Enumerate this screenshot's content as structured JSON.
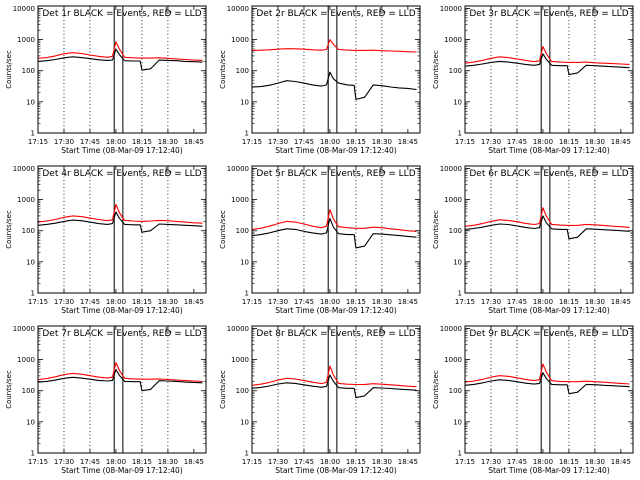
{
  "chart_data": {
    "type": "line",
    "x_tick_labels": [
      "17:15",
      "17:30",
      "17:45",
      "18:00",
      "18:15",
      "18:30",
      "18:45"
    ],
    "x_tick_minutes": [
      15,
      30,
      45,
      60,
      75,
      90,
      105
    ],
    "x_range_minutes": [
      15,
      112
    ],
    "y_ticks": [
      1,
      10,
      100,
      1000,
      10000
    ],
    "y_tick_labels": [
      "1",
      "10",
      "100",
      "1000",
      "10000"
    ],
    "y_range": [
      1,
      12000
    ],
    "y_scale": "log",
    "dotted_gridline_minutes": [
      30,
      45,
      75,
      90
    ],
    "solid_marker_minutes": [
      59,
      64
    ],
    "colors": {
      "events": "#000000",
      "lld": "#ff0000"
    },
    "panels": [
      {
        "title": "Det 1r BLACK = Events, RED = LLD",
        "xlabel": "Start Time (08-Mar-09 17:12:40)",
        "ylabel": "Counts/sec",
        "series": [
          {
            "color": "#000000",
            "x": [
              15,
              20,
              25,
              30,
              35,
              40,
              45,
              50,
              55,
              58,
              60,
              62,
              65,
              70,
              74,
              75,
              80,
              85,
              90,
              95,
              100,
              105,
              110
            ],
            "y": [
              200,
              210,
              230,
              260,
              280,
              265,
              245,
              225,
              215,
              220,
              500,
              330,
              210,
              205,
              205,
              105,
              115,
              220,
              215,
              210,
              200,
              195,
              190
            ]
          },
          {
            "color": "#ff0000",
            "x": [
              15,
              20,
              25,
              30,
              35,
              40,
              45,
              50,
              55,
              58,
              60,
              62,
              65,
              70,
              75,
              80,
              85,
              90,
              95,
              100,
              105,
              110
            ],
            "y": [
              250,
              265,
              300,
              350,
              380,
              360,
              320,
              290,
              270,
              290,
              850,
              500,
              270,
              260,
              255,
              255,
              260,
              250,
              240,
              230,
              220,
              215
            ]
          }
        ]
      },
      {
        "title": "Det 2r BLACK = Events, RED = LLD",
        "xlabel": "Start Time (08-Mar-09 17:12:40)",
        "ylabel": "Counts/sec",
        "series": [
          {
            "color": "#000000",
            "x": [
              15,
              20,
              25,
              30,
              35,
              40,
              45,
              50,
              55,
              58,
              60,
              62,
              65,
              70,
              74,
              75,
              80,
              85,
              90,
              95,
              100,
              105,
              110
            ],
            "y": [
              30,
              31,
              34,
              40,
              48,
              45,
              40,
              35,
              32,
              35,
              90,
              55,
              40,
              35,
              34,
              12,
              14,
              35,
              33,
              30,
              28,
              27,
              25
            ]
          },
          {
            "color": "#ff0000",
            "x": [
              15,
              20,
              25,
              30,
              35,
              40,
              45,
              50,
              55,
              58,
              60,
              62,
              65,
              70,
              75,
              80,
              85,
              90,
              95,
              100,
              105,
              110
            ],
            "y": [
              450,
              455,
              470,
              490,
              510,
              505,
              490,
              470,
              455,
              480,
              1000,
              700,
              480,
              460,
              450,
              450,
              455,
              440,
              430,
              420,
              410,
              400
            ]
          }
        ]
      },
      {
        "title": "Det 3r BLACK = Events, RED = LLD",
        "xlabel": "Start Time (08-Mar-09 17:12:40)",
        "ylabel": "Counts/sec",
        "series": [
          {
            "color": "#000000",
            "x": [
              15,
              20,
              25,
              30,
              35,
              40,
              45,
              50,
              55,
              58,
              60,
              62,
              65,
              70,
              74,
              75,
              80,
              85,
              90,
              95,
              100,
              105,
              110
            ],
            "y": [
              140,
              150,
              165,
              185,
              200,
              190,
              175,
              160,
              150,
              160,
              350,
              230,
              150,
              145,
              145,
              75,
              85,
              150,
              145,
              140,
              135,
              130,
              125
            ]
          },
          {
            "color": "#ff0000",
            "x": [
              15,
              20,
              25,
              30,
              35,
              40,
              45,
              50,
              55,
              58,
              60,
              62,
              65,
              70,
              75,
              80,
              85,
              90,
              95,
              100,
              105,
              110
            ],
            "y": [
              175,
              190,
              215,
              250,
              280,
              265,
              240,
              215,
              195,
              210,
              600,
              350,
              200,
              190,
              185,
              185,
              190,
              180,
              175,
              170,
              165,
              160
            ]
          }
        ]
      },
      {
        "title": "Det 4r BLACK = Events, RED = LLD",
        "xlabel": "Start Time (08-Mar-09 17:12:40)",
        "ylabel": "Counts/sec",
        "series": [
          {
            "color": "#000000",
            "x": [
              15,
              20,
              25,
              30,
              35,
              40,
              45,
              50,
              55,
              58,
              60,
              62,
              65,
              70,
              74,
              75,
              80,
              85,
              90,
              95,
              100,
              105,
              110
            ],
            "y": [
              150,
              160,
              175,
              200,
              220,
              210,
              190,
              170,
              160,
              170,
              400,
              250,
              160,
              155,
              155,
              90,
              100,
              165,
              160,
              155,
              150,
              145,
              140
            ]
          },
          {
            "color": "#ff0000",
            "x": [
              15,
              20,
              25,
              30,
              35,
              40,
              45,
              50,
              55,
              58,
              60,
              62,
              65,
              70,
              75,
              80,
              85,
              90,
              95,
              100,
              105,
              110
            ],
            "y": [
              190,
              205,
              230,
              270,
              300,
              285,
              255,
              230,
              210,
              225,
              700,
              380,
              215,
              205,
              200,
              205,
              215,
              210,
              200,
              190,
              180,
              175
            ]
          }
        ]
      },
      {
        "title": "Det 5r BLACK = Events, RED = LLD",
        "xlabel": "Start Time (08-Mar-09 17:12:40)",
        "ylabel": "Counts/sec",
        "series": [
          {
            "color": "#000000",
            "x": [
              15,
              20,
              25,
              30,
              35,
              40,
              45,
              50,
              55,
              58,
              60,
              62,
              65,
              70,
              74,
              75,
              80,
              85,
              90,
              95,
              100,
              105,
              110
            ],
            "y": [
              70,
              75,
              85,
              100,
              115,
              110,
              95,
              85,
              78,
              85,
              250,
              130,
              80,
              75,
              75,
              28,
              32,
              80,
              78,
              74,
              70,
              66,
              62
            ]
          },
          {
            "color": "#ff0000",
            "x": [
              15,
              20,
              25,
              30,
              35,
              40,
              45,
              50,
              55,
              58,
              60,
              62,
              65,
              70,
              75,
              80,
              85,
              90,
              95,
              100,
              105,
              110
            ],
            "y": [
              110,
              120,
              140,
              170,
              200,
              190,
              165,
              140,
              125,
              140,
              480,
              240,
              135,
              125,
              120,
              120,
              130,
              125,
              115,
              108,
              100,
              95
            ]
          }
        ]
      },
      {
        "title": "Det 6r BLACK = Events, RED = LLD",
        "xlabel": "Start Time (08-Mar-09 17:12:40)",
        "ylabel": "Counts/sec",
        "series": [
          {
            "color": "#000000",
            "x": [
              15,
              20,
              25,
              30,
              35,
              40,
              45,
              50,
              55,
              58,
              60,
              62,
              65,
              70,
              74,
              75,
              80,
              85,
              90,
              95,
              100,
              105,
              110
            ],
            "y": [
              110,
              118,
              130,
              150,
              165,
              158,
              143,
              128,
              118,
              125,
              300,
              180,
              115,
              110,
              110,
              55,
              62,
              115,
              112,
              108,
              104,
              100,
              96
            ]
          },
          {
            "color": "#ff0000",
            "x": [
              15,
              20,
              25,
              30,
              35,
              40,
              45,
              50,
              55,
              58,
              60,
              62,
              65,
              70,
              75,
              80,
              85,
              90,
              95,
              100,
              105,
              110
            ],
            "y": [
              140,
              150,
              170,
              200,
              225,
              215,
              195,
              172,
              158,
              170,
              550,
              290,
              160,
              152,
              148,
              150,
              160,
              155,
              148,
              140,
              135,
              128
            ]
          }
        ]
      },
      {
        "title": "Det 7r BLACK = Events, RED = LLD",
        "xlabel": "Start Time (08-Mar-09 17:12:40)",
        "ylabel": "Counts/sec",
        "series": [
          {
            "color": "#000000",
            "x": [
              15,
              20,
              25,
              30,
              35,
              40,
              45,
              50,
              55,
              58,
              60,
              62,
              65,
              70,
              74,
              75,
              80,
              85,
              90,
              95,
              100,
              105,
              110
            ],
            "y": [
              190,
              200,
              220,
              250,
              270,
              255,
              235,
              215,
              205,
              215,
              480,
              310,
              200,
              195,
              195,
              100,
              110,
              210,
              205,
              200,
              190,
              185,
              180
            ]
          },
          {
            "color": "#ff0000",
            "x": [
              15,
              20,
              25,
              30,
              35,
              40,
              45,
              50,
              55,
              58,
              60,
              62,
              65,
              70,
              75,
              80,
              85,
              90,
              95,
              100,
              105,
              110
            ],
            "y": [
              230,
              245,
              280,
              330,
              360,
              340,
              305,
              275,
              255,
              275,
              800,
              450,
              250,
              240,
              235,
              235,
              240,
              230,
              220,
              212,
              205,
              198
            ]
          }
        ]
      },
      {
        "title": "Det 8r BLACK = Events, RED = LLD",
        "xlabel": "Start Time (08-Mar-09 17:12:40)",
        "ylabel": "Counts/sec",
        "series": [
          {
            "color": "#000000",
            "x": [
              15,
              20,
              25,
              30,
              35,
              40,
              45,
              50,
              55,
              58,
              60,
              62,
              65,
              70,
              74,
              75,
              80,
              85,
              90,
              95,
              100,
              105,
              110
            ],
            "y": [
              120,
              128,
              142,
              165,
              180,
              172,
              155,
              140,
              130,
              138,
              320,
              200,
              125,
              120,
              120,
              60,
              68,
              125,
              122,
              118,
              112,
              108,
              104
            ]
          },
          {
            "color": "#ff0000",
            "x": [
              15,
              20,
              25,
              30,
              35,
              40,
              45,
              50,
              55,
              58,
              60,
              62,
              65,
              70,
              75,
              80,
              85,
              90,
              95,
              100,
              105,
              110
            ],
            "y": [
              150,
              162,
              185,
              220,
              250,
              238,
              212,
              188,
              170,
              185,
              620,
              320,
              172,
              162,
              158,
              160,
              168,
              162,
              155,
              148,
              140,
              135
            ]
          }
        ]
      },
      {
        "title": "Det 9r BLACK = Events, RED = LLD",
        "xlabel": "Start Time (08-Mar-09 17:12:40)",
        "ylabel": "Counts/sec",
        "series": [
          {
            "color": "#000000",
            "x": [
              15,
              20,
              25,
              30,
              35,
              40,
              45,
              50,
              55,
              58,
              60,
              62,
              65,
              70,
              74,
              75,
              80,
              85,
              90,
              95,
              100,
              105,
              110
            ],
            "y": [
              150,
              160,
              178,
              205,
              225,
              215,
              195,
              175,
              163,
              172,
              380,
              245,
              160,
              155,
              155,
              80,
              90,
              160,
              156,
              150,
              145,
              140,
              135
            ]
          },
          {
            "color": "#ff0000",
            "x": [
              15,
              20,
              25,
              30,
              35,
              40,
              45,
              50,
              55,
              58,
              60,
              62,
              65,
              70,
              75,
              80,
              85,
              90,
              95,
              100,
              105,
              110
            ],
            "y": [
              190,
              205,
              232,
              275,
              305,
              290,
              260,
              232,
              212,
              228,
              720,
              390,
              210,
              200,
              195,
              195,
              202,
              195,
              188,
              180,
              172,
              165
            ]
          }
        ]
      }
    ]
  }
}
